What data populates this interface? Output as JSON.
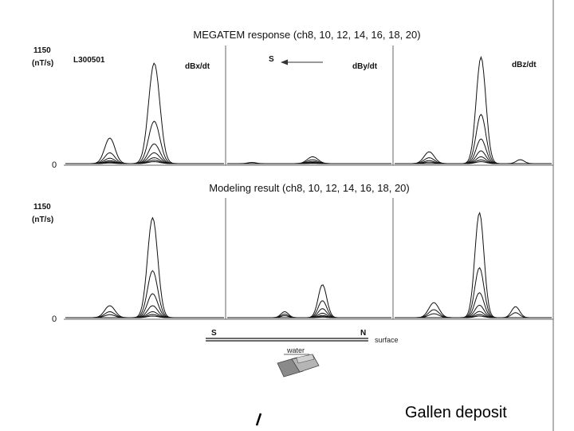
{
  "chart_data": [
    {
      "type": "line",
      "title": "MEGATEM response (ch8, 10, 12, 14, 16, 18, 20)",
      "line_id": "L300501",
      "ylabel_value": "1150",
      "ylabel_unit": "(nT/s)",
      "ylim": [
        0,
        1150
      ],
      "yticks": [
        "1150",
        "0"
      ],
      "direction_label": "S",
      "panels": [
        {
          "label": "dBx/dt",
          "series": [
            {
              "channel": "ch8",
              "peaks": [
                {
                  "x": 0.56,
                  "w": 0.11,
                  "h": 1020
                },
                {
                  "x": 0.28,
                  "w": 0.1,
                  "h": 260
                }
              ]
            },
            {
              "channel": "ch10",
              "peaks": [
                {
                  "x": 0.56,
                  "w": 0.11,
                  "h": 430
                },
                {
                  "x": 0.28,
                  "w": 0.1,
                  "h": 110
                }
              ]
            },
            {
              "channel": "ch12",
              "peaks": [
                {
                  "x": 0.56,
                  "w": 0.11,
                  "h": 200
                },
                {
                  "x": 0.28,
                  "w": 0.1,
                  "h": 55
                }
              ]
            },
            {
              "channel": "ch14",
              "peaks": [
                {
                  "x": 0.56,
                  "w": 0.11,
                  "h": 110
                },
                {
                  "x": 0.28,
                  "w": 0.1,
                  "h": 30
                }
              ]
            },
            {
              "channel": "ch16",
              "peaks": [
                {
                  "x": 0.56,
                  "w": 0.11,
                  "h": 60
                },
                {
                  "x": 0.28,
                  "w": 0.1,
                  "h": 18
                }
              ]
            },
            {
              "channel": "ch18",
              "peaks": [
                {
                  "x": 0.56,
                  "w": 0.11,
                  "h": 35
                },
                {
                  "x": 0.28,
                  "w": 0.1,
                  "h": 10
                }
              ]
            },
            {
              "channel": "ch20",
              "peaks": [
                {
                  "x": 0.56,
                  "w": 0.11,
                  "h": 20
                },
                {
                  "x": 0.28,
                  "w": 0.1,
                  "h": 6
                }
              ]
            }
          ]
        },
        {
          "label": "dBy/dt",
          "series": [
            {
              "channel": "ch8",
              "peaks": [
                {
                  "x": 0.52,
                  "w": 0.1,
                  "h": 70
                },
                {
                  "x": 0.15,
                  "w": 0.08,
                  "h": 12
                }
              ]
            },
            {
              "channel": "ch10",
              "peaks": [
                {
                  "x": 0.52,
                  "w": 0.1,
                  "h": 40
                }
              ]
            },
            {
              "channel": "ch12",
              "peaks": [
                {
                  "x": 0.52,
                  "w": 0.1,
                  "h": 22
                }
              ]
            },
            {
              "channel": "ch14",
              "peaks": [
                {
                  "x": 0.52,
                  "w": 0.1,
                  "h": 12
                }
              ]
            },
            {
              "channel": "ch16",
              "peaks": [
                {
                  "x": 0.52,
                  "w": 0.1,
                  "h": 7
                }
              ]
            },
            {
              "channel": "ch18",
              "peaks": [
                {
                  "x": 0.52,
                  "w": 0.1,
                  "h": 4
                }
              ]
            },
            {
              "channel": "ch20",
              "peaks": [
                {
                  "x": 0.52,
                  "w": 0.1,
                  "h": 2
                }
              ]
            }
          ]
        },
        {
          "label": "dBz/dt",
          "series": [
            {
              "channel": "ch8",
              "peaks": [
                {
                  "x": 0.55,
                  "w": 0.095,
                  "h": 1080
                },
                {
                  "x": 0.22,
                  "w": 0.1,
                  "h": 120
                },
                {
                  "x": 0.8,
                  "w": 0.08,
                  "h": 40
                }
              ]
            },
            {
              "channel": "ch10",
              "peaks": [
                {
                  "x": 0.55,
                  "w": 0.095,
                  "h": 500
                },
                {
                  "x": 0.22,
                  "w": 0.1,
                  "h": 60
                }
              ]
            },
            {
              "channel": "ch12",
              "peaks": [
                {
                  "x": 0.55,
                  "w": 0.095,
                  "h": 250
                },
                {
                  "x": 0.22,
                  "w": 0.1,
                  "h": 30
                }
              ]
            },
            {
              "channel": "ch14",
              "peaks": [
                {
                  "x": 0.55,
                  "w": 0.095,
                  "h": 130
                },
                {
                  "x": 0.22,
                  "w": 0.1,
                  "h": 15
                }
              ]
            },
            {
              "channel": "ch16",
              "peaks": [
                {
                  "x": 0.55,
                  "w": 0.095,
                  "h": 70
                }
              ]
            },
            {
              "channel": "ch18",
              "peaks": [
                {
                  "x": 0.55,
                  "w": 0.095,
                  "h": 38
                }
              ]
            },
            {
              "channel": "ch20",
              "peaks": [
                {
                  "x": 0.55,
                  "w": 0.095,
                  "h": 20
                }
              ]
            }
          ]
        }
      ]
    },
    {
      "type": "line",
      "title": "Modeling result (ch8, 10, 12, 14, 16, 18, 20)",
      "ylabel_value": "1150",
      "ylabel_unit": "(nT/s)",
      "ylim": [
        0,
        1150
      ],
      "yticks": [
        "1150",
        "0"
      ],
      "panels": [
        {
          "label": "",
          "series": [
            {
              "channel": "ch8",
              "peaks": [
                {
                  "x": 0.55,
                  "w": 0.1,
                  "h": 1000
                },
                {
                  "x": 0.28,
                  "w": 0.1,
                  "h": 120
                }
              ]
            },
            {
              "channel": "ch10",
              "peaks": [
                {
                  "x": 0.55,
                  "w": 0.1,
                  "h": 470
                },
                {
                  "x": 0.28,
                  "w": 0.1,
                  "h": 60
                }
              ]
            },
            {
              "channel": "ch12",
              "peaks": [
                {
                  "x": 0.55,
                  "w": 0.1,
                  "h": 240
                },
                {
                  "x": 0.28,
                  "w": 0.1,
                  "h": 30
                }
              ]
            },
            {
              "channel": "ch14",
              "peaks": [
                {
                  "x": 0.55,
                  "w": 0.1,
                  "h": 120
                }
              ]
            },
            {
              "channel": "ch16",
              "peaks": [
                {
                  "x": 0.55,
                  "w": 0.1,
                  "h": 60
                }
              ]
            },
            {
              "channel": "ch18",
              "peaks": [
                {
                  "x": 0.55,
                  "w": 0.1,
                  "h": 32
                }
              ]
            },
            {
              "channel": "ch20",
              "peaks": [
                {
                  "x": 0.55,
                  "w": 0.1,
                  "h": 16
                }
              ]
            }
          ]
        },
        {
          "label": "",
          "series": [
            {
              "channel": "ch8",
              "peaks": [
                {
                  "x": 0.58,
                  "w": 0.08,
                  "h": 330
                },
                {
                  "x": 0.35,
                  "w": 0.07,
                  "h": 60
                }
              ]
            },
            {
              "channel": "ch10",
              "peaks": [
                {
                  "x": 0.58,
                  "w": 0.08,
                  "h": 170
                },
                {
                  "x": 0.35,
                  "w": 0.07,
                  "h": 35
                }
              ]
            },
            {
              "channel": "ch12",
              "peaks": [
                {
                  "x": 0.58,
                  "w": 0.08,
                  "h": 90
                },
                {
                  "x": 0.35,
                  "w": 0.07,
                  "h": 20
                }
              ]
            },
            {
              "channel": "ch14",
              "peaks": [
                {
                  "x": 0.58,
                  "w": 0.08,
                  "h": 45
                }
              ]
            },
            {
              "channel": "ch16",
              "peaks": [
                {
                  "x": 0.58,
                  "w": 0.08,
                  "h": 22
                }
              ]
            },
            {
              "channel": "ch18",
              "peaks": [
                {
                  "x": 0.58,
                  "w": 0.08,
                  "h": 11
                }
              ]
            },
            {
              "channel": "ch20",
              "peaks": [
                {
                  "x": 0.58,
                  "w": 0.08,
                  "h": 5
                }
              ]
            }
          ]
        },
        {
          "label": "",
          "series": [
            {
              "channel": "ch8",
              "peaks": [
                {
                  "x": 0.54,
                  "w": 0.09,
                  "h": 1050
                },
                {
                  "x": 0.25,
                  "w": 0.1,
                  "h": 150
                },
                {
                  "x": 0.77,
                  "w": 0.08,
                  "h": 110
                }
              ]
            },
            {
              "channel": "ch10",
              "peaks": [
                {
                  "x": 0.54,
                  "w": 0.09,
                  "h": 500
                },
                {
                  "x": 0.25,
                  "w": 0.1,
                  "h": 80
                },
                {
                  "x": 0.77,
                  "w": 0.08,
                  "h": 50
                }
              ]
            },
            {
              "channel": "ch12",
              "peaks": [
                {
                  "x": 0.54,
                  "w": 0.09,
                  "h": 250
                },
                {
                  "x": 0.25,
                  "w": 0.1,
                  "h": 40
                }
              ]
            },
            {
              "channel": "ch14",
              "peaks": [
                {
                  "x": 0.54,
                  "w": 0.09,
                  "h": 125
                }
              ]
            },
            {
              "channel": "ch16",
              "peaks": [
                {
                  "x": 0.54,
                  "w": 0.09,
                  "h": 62
                }
              ]
            },
            {
              "channel": "ch18",
              "peaks": [
                {
                  "x": 0.54,
                  "w": 0.09,
                  "h": 32
                }
              ]
            },
            {
              "channel": "ch20",
              "peaks": [
                {
                  "x": 0.54,
                  "w": 0.09,
                  "h": 16
                }
              ]
            }
          ]
        }
      ]
    }
  ],
  "section_labels": {
    "left": "S",
    "right": "N",
    "surface": "surface",
    "water": "water"
  },
  "caption": "Gallen deposit",
  "colors": {
    "line": "#111111",
    "panel_border": "#666666",
    "body_fill": "#8a8a8a"
  }
}
